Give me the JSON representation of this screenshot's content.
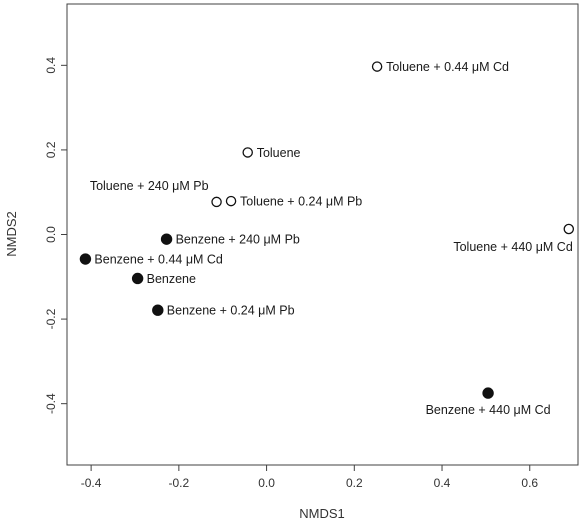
{
  "chart_data": {
    "type": "scatter",
    "xlabel": "NMDS1",
    "ylabel": "NMDS2",
    "xlim": [
      -0.455,
      0.71
    ],
    "ylim": [
      -0.545,
      0.545
    ],
    "x_ticks": [
      -0.4,
      -0.2,
      0.0,
      0.2,
      0.4,
      0.6
    ],
    "y_ticks": [
      -0.4,
      -0.2,
      0.0,
      0.2,
      0.4
    ],
    "x_tick_labels": [
      "-0.4",
      "-0.2",
      "0.0",
      "0.2",
      "0.4",
      "0.6"
    ],
    "y_tick_labels": [
      "-0.4",
      "-0.2",
      "0.0",
      "0.2",
      "0.4"
    ],
    "grid": false,
    "points": [
      {
        "label": "Toluene + 0.44 μM Cd",
        "x": 0.252,
        "y": 0.397,
        "filled": false,
        "label_side": "right"
      },
      {
        "label": "Toluene",
        "x": -0.043,
        "y": 0.194,
        "filled": false,
        "label_side": "right"
      },
      {
        "label": "Toluene + 240 μM Pb",
        "x": -0.114,
        "y": 0.077,
        "filled": false,
        "label_side": "above-left"
      },
      {
        "label": "Toluene + 0.24 μM Pb",
        "x": -0.081,
        "y": 0.079,
        "filled": false,
        "label_side": "right"
      },
      {
        "label": "Toluene + 440 μM Cd",
        "x": 0.689,
        "y": 0.013,
        "filled": false,
        "label_side": "below-left"
      },
      {
        "label": "Benzene + 240 μM Pb",
        "x": -0.228,
        "y": -0.011,
        "filled": true,
        "label_side": "right"
      },
      {
        "label": "Benzene + 0.44 μM Cd",
        "x": -0.413,
        "y": -0.058,
        "filled": true,
        "label_side": "right"
      },
      {
        "label": "Benzene",
        "x": -0.294,
        "y": -0.104,
        "filled": true,
        "label_side": "right"
      },
      {
        "label": "Benzene + 0.24 μM Pb",
        "x": -0.248,
        "y": -0.179,
        "filled": true,
        "label_side": "right"
      },
      {
        "label": "Benzene + 440 μM Cd",
        "x": 0.505,
        "y": -0.375,
        "filled": true,
        "label_side": "below-center"
      }
    ]
  }
}
